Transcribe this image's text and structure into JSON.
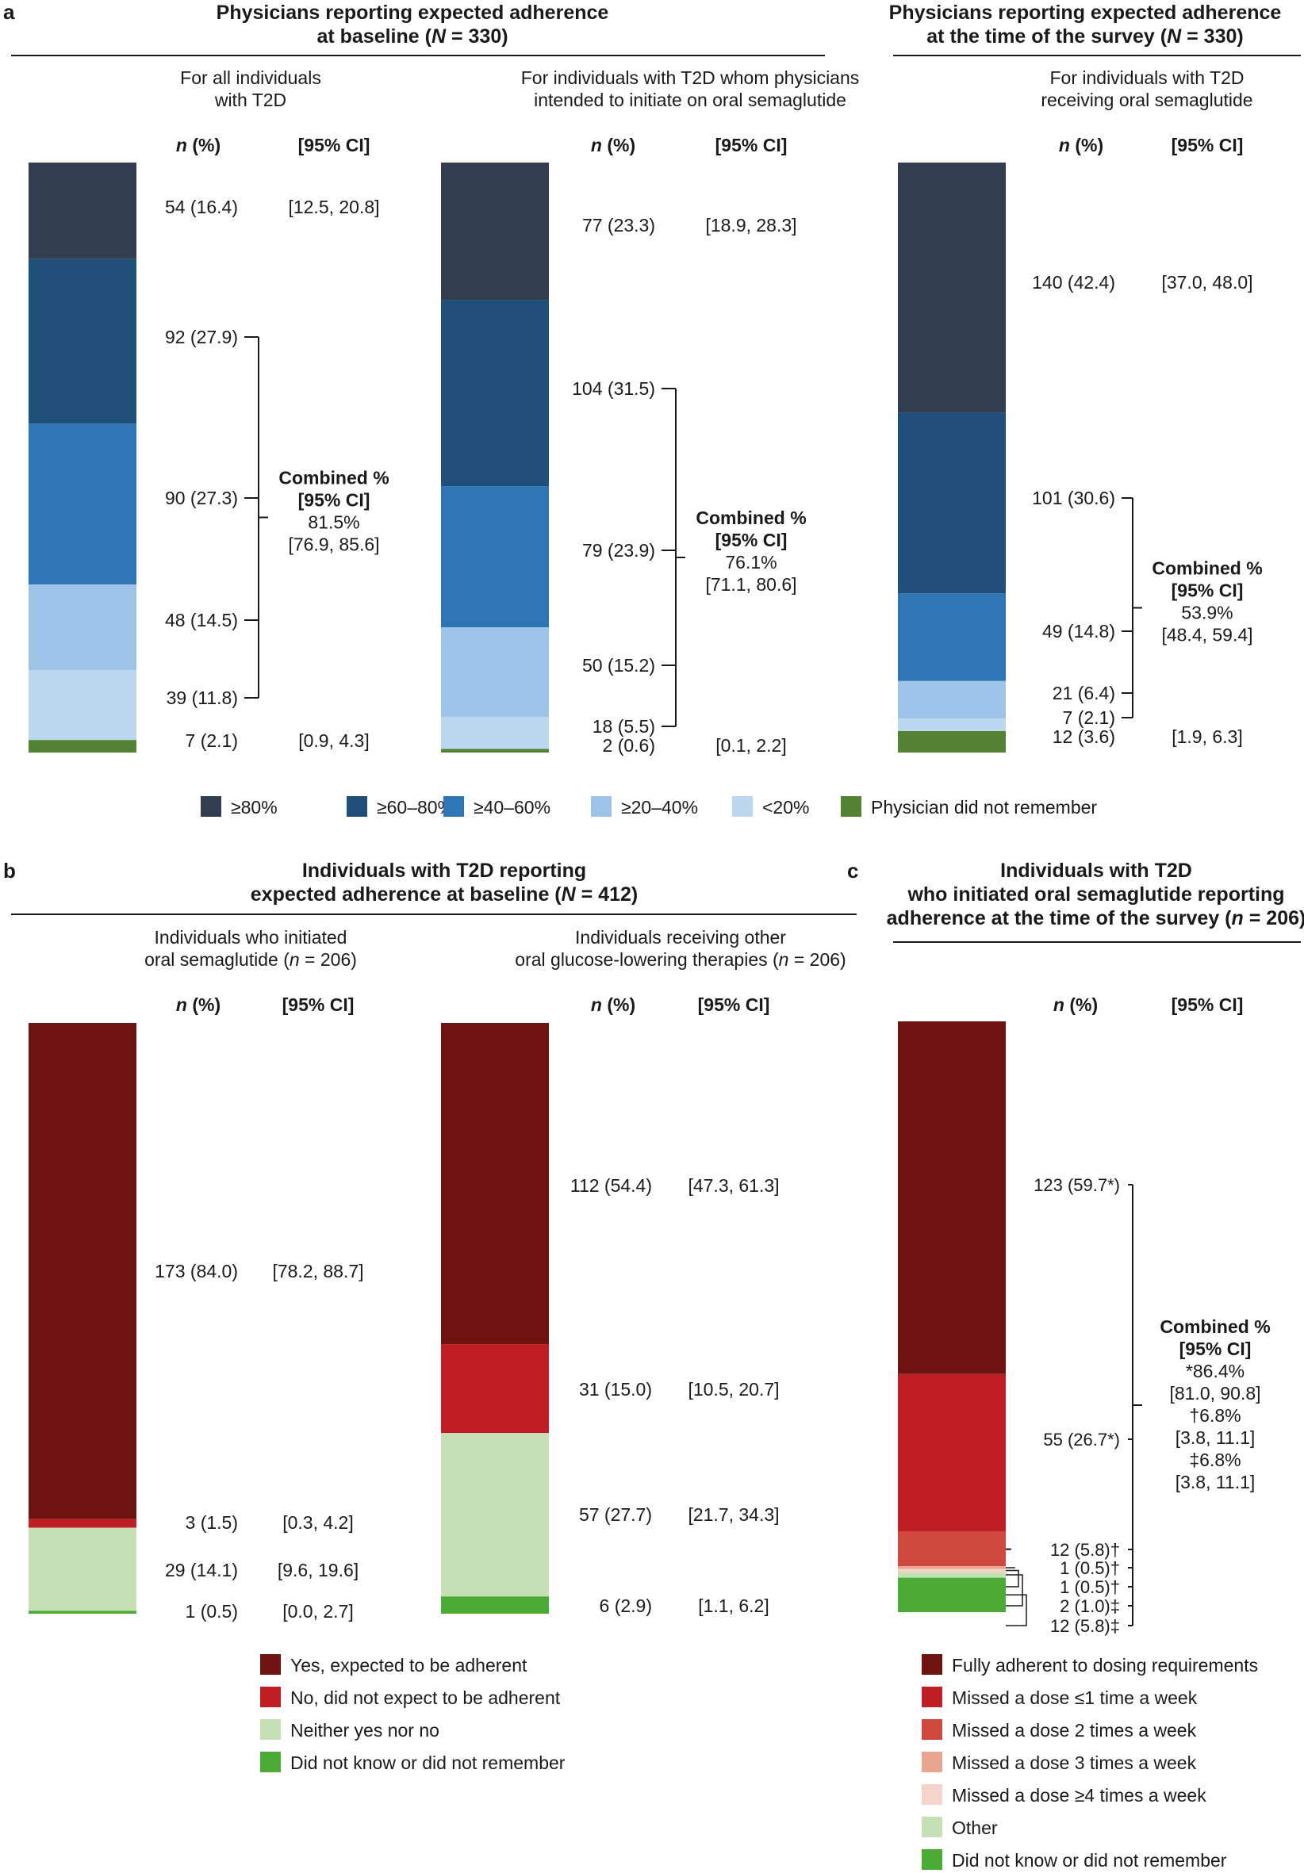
{
  "colors": {
    "ge80": "#323e4f",
    "ge60": "#1f4e79",
    "ge40": "#2e75b6",
    "ge20": "#9dc3e6",
    "lt20": "#bdd7ee",
    "dnr_green": "#548235",
    "yes": "#6e1410",
    "no": "#be1e24",
    "neither": "#c5e0b4",
    "dk": "#4aab35",
    "missed2": "#d0473d",
    "missed3": "#e8a691",
    "missed4": "#f4d4cb"
  },
  "panels": {
    "a": {
      "label": "a",
      "left_title": [
        "Physicians reporting expected adherence",
        "at baseline (N = 330)"
      ],
      "right_title": [
        "Physicians reporting expected adherence",
        "at the time of the survey (N = 330)"
      ]
    },
    "b": {
      "label": "b",
      "title": [
        "Individuals with T2D reporting",
        "expected adherence at baseline (N = 412)"
      ]
    },
    "c": {
      "label": "c",
      "title": [
        "Individuals with T2D",
        "who initiated oral semaglutide reporting",
        "adherence at the time of the survey (n = 206)"
      ]
    }
  },
  "col_headers": {
    "n": "n (%)",
    "ci": "[95% CI]"
  },
  "legend_a": [
    "≥80%",
    "≥60–80%",
    "≥40–60%",
    "≥20–40%",
    "<20%",
    "Physician did not remember"
  ],
  "legend_b": [
    "Yes, expected to be adherent",
    "No, did not expect to be adherent",
    "Neither yes nor no",
    "Did not know or did not remember"
  ],
  "legend_c": [
    "Fully adherent to dosing requirements",
    "Missed a dose ≤1 time a week",
    "Missed a dose 2 times a week",
    "Missed a dose 3 times a week",
    "Missed a dose ≥4 times a week",
    "Other",
    "Did not know or did not remember"
  ],
  "chart_data": [
    {
      "type": "bar",
      "stacked": true,
      "panel": "a",
      "subtitle": [
        "For all individuals",
        "with T2D"
      ],
      "categories": [
        "≥80%",
        "≥60–80%",
        "≥40–60%",
        "≥20–40%",
        "<20%",
        "Physician did not remember"
      ],
      "values": [
        54,
        92,
        90,
        48,
        39,
        7
      ],
      "labels": [
        "54 (16.4)",
        "92 (27.9)",
        "90 (27.3)",
        "48 (14.5)",
        "39 (11.8)",
        "7 (2.1)"
      ],
      "ci": [
        "[12.5, 20.8]",
        "",
        "",
        "",
        "",
        "[0.9, 4.3]"
      ],
      "combined": [
        "Combined %",
        "[95% CI]",
        "81.5%",
        "[76.9, 85.6]"
      ]
    },
    {
      "type": "bar",
      "stacked": true,
      "panel": "a",
      "subtitle": [
        "For individuals with T2D whom physicians",
        "intended to initiate on oral semaglutide"
      ],
      "categories": [
        "≥80%",
        "≥60–80%",
        "≥40–60%",
        "≥20–40%",
        "<20%",
        "Physician did not remember"
      ],
      "values": [
        77,
        104,
        79,
        50,
        18,
        2
      ],
      "labels": [
        "77 (23.3)",
        "104 (31.5)",
        "79 (23.9)",
        "50 (15.2)",
        "18 (5.5)",
        "2 (0.6)"
      ],
      "ci": [
        "[18.9, 28.3]",
        "",
        "",
        "",
        "",
        "[0.1, 2.2]"
      ],
      "combined": [
        "Combined %",
        "[95% CI]",
        "76.1%",
        "[71.1, 80.6]"
      ]
    },
    {
      "type": "bar",
      "stacked": true,
      "panel": "a",
      "subtitle": [
        "For individuals with T2D",
        "receiving oral semaglutide"
      ],
      "categories": [
        "≥80%",
        "≥60–80%",
        "≥40–60%",
        "≥20–40%",
        "<20%",
        "Physician did not remember"
      ],
      "values": [
        140,
        101,
        49,
        21,
        7,
        12
      ],
      "labels": [
        "140 (42.4)",
        "101 (30.6)",
        "49 (14.8)",
        "21 (6.4)",
        "7 (2.1)",
        "12 (3.6)"
      ],
      "ci": [
        "[37.0, 48.0]",
        "",
        "",
        "",
        "",
        "[1.9, 6.3]"
      ],
      "combined": [
        "Combined %",
        "[95% CI]",
        "53.9%",
        "[48.4, 59.4]"
      ]
    },
    {
      "type": "bar",
      "stacked": true,
      "panel": "b",
      "subtitle": [
        "Individuals who initiated",
        "oral semaglutide (n = 206)"
      ],
      "categories": [
        "Yes, expected to be adherent",
        "No, did not expect to be adherent",
        "Neither yes nor no",
        "Did not know or did not remember"
      ],
      "values": [
        173,
        3,
        29,
        1
      ],
      "labels": [
        "173 (84.0)",
        "3 (1.5)",
        "29 (14.1)",
        "1 (0.5)"
      ],
      "ci": [
        "[78.2, 88.7]",
        "[0.3, 4.2]",
        "[9.6, 19.6]",
        "[0.0, 2.7]"
      ]
    },
    {
      "type": "bar",
      "stacked": true,
      "panel": "b",
      "subtitle": [
        "Individuals receiving other",
        "oral glucose-lowering therapies (n = 206)"
      ],
      "categories": [
        "Yes, expected to be adherent",
        "No, did not expect to be adherent",
        "Neither yes nor no",
        "Did not know or did not remember"
      ],
      "values": [
        112,
        31,
        57,
        6
      ],
      "labels": [
        "112 (54.4)",
        "31 (15.0)",
        "57 (27.7)",
        "6 (2.9)"
      ],
      "ci": [
        "[47.3, 61.3]",
        "[10.5, 20.7]",
        "[21.7, 34.3]",
        "[1.1, 6.2]"
      ]
    },
    {
      "type": "bar",
      "stacked": true,
      "panel": "c",
      "categories": [
        "Fully adherent to dosing requirements",
        "Missed a dose ≤1 time a week",
        "Missed a dose 2 times a week",
        "Missed a dose 3 times a week",
        "Missed a dose ≥4 times a week",
        "Other",
        "Did not know or did not remember"
      ],
      "values": [
        123,
        55,
        12,
        1,
        1,
        2,
        12
      ],
      "labels": [
        "123 (59.7*)",
        "55 (26.7*)",
        "12 (5.8)†",
        "1 (0.5)†",
        "1 (0.5)†",
        "2 (1.0)‡",
        "12 (5.8)‡"
      ],
      "combined": [
        "Combined %",
        "[95% CI]",
        "*86.4%",
        "[81.0, 90.8]",
        "†6.8%",
        "[3.8, 11.1]",
        "‡6.8%",
        "[3.8, 11.1]"
      ]
    }
  ]
}
